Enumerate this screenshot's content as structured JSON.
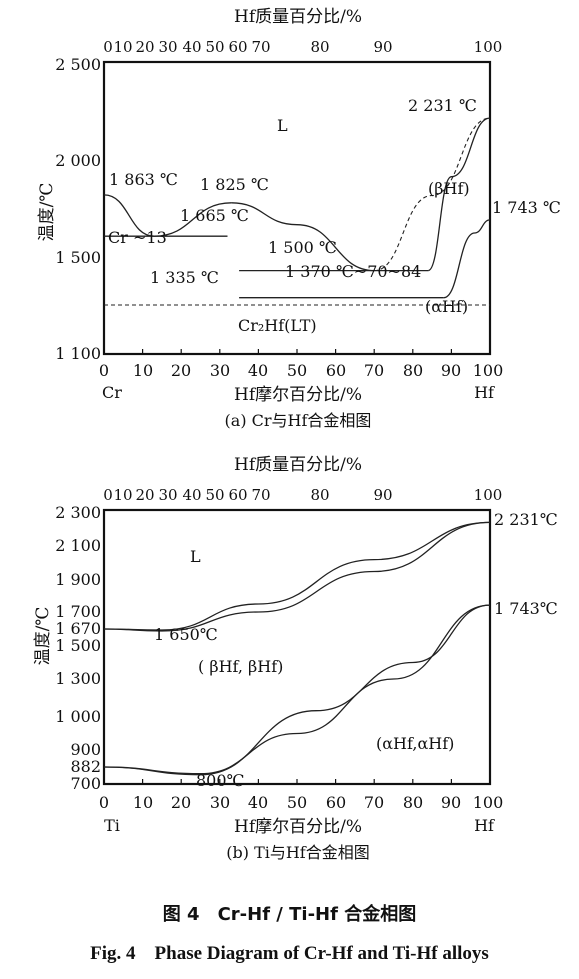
{
  "chart_data": [
    {
      "type": "line",
      "subtitle": "(a) Cr与Hf合金相图",
      "top_axis_label": "Hf质量百分比/%",
      "top_ticks": [
        "0",
        "10",
        "20",
        "30",
        "40",
        "50",
        "60",
        "70",
        "80",
        "90",
        "100"
      ],
      "xlabel": "Hf摩尔百分比/%",
      "ylabel": "温度/℃",
      "xlim": [
        0,
        100
      ],
      "ylim": [
        1100,
        2500
      ],
      "x_ticks": [
        "0",
        "10",
        "20",
        "30",
        "40",
        "50",
        "60",
        "70",
        "80",
        "90",
        "100"
      ],
      "y_ticks": [
        "1 100",
        "1 500",
        "2 000",
        "2 500"
      ],
      "x_end_labels": {
        "left": "Cr",
        "right": "Hf"
      },
      "annotations": [
        "L",
        "2 231 ℃",
        "1 863 ℃",
        "1 825 ℃",
        "1 665 ℃",
        "(βHf)",
        "1 743 ℃",
        "Cr ~13",
        "1 500 ℃",
        "1 335 ℃",
        "1 370 ℃~70~84",
        "(αHf)",
        "Cr₂Hf(LT)"
      ],
      "series": [
        {
          "style": "solid",
          "x": [
            0,
            13,
            33
          ],
          "y": [
            1863,
            1665,
            1825
          ]
        },
        {
          "style": "solid",
          "x": [
            33,
            50,
            70
          ],
          "y": [
            1825,
            1720,
            1500
          ]
        },
        {
          "style": "dashed",
          "x": [
            70,
            85,
            100
          ],
          "y": [
            1500,
            1860,
            2231
          ]
        },
        {
          "style": "solid",
          "x": [
            84,
            90,
            100
          ],
          "y": [
            1500,
            1950,
            2231
          ]
        },
        {
          "style": "solid",
          "x": [
            88,
            96,
            100
          ],
          "y": [
            1370,
            1680,
            1743
          ]
        },
        {
          "style": "solid",
          "x": [
            0,
            32
          ],
          "y": [
            1665,
            1665
          ]
        },
        {
          "style": "solid",
          "x": [
            35,
            84
          ],
          "y": [
            1500,
            1500
          ]
        },
        {
          "style": "solid",
          "x": [
            35,
            88
          ],
          "y": [
            1370,
            1370
          ]
        },
        {
          "style": "dashed",
          "x": [
            0,
            100
          ],
          "y": [
            1335,
            1335
          ]
        }
      ]
    },
    {
      "type": "line",
      "subtitle": "(b) Ti与Hf合金相图",
      "top_axis_label": "Hf质量百分比/%",
      "top_ticks": [
        "0",
        "10",
        "20",
        "30",
        "40",
        "50",
        "60",
        "70",
        "80",
        "90",
        "100"
      ],
      "xlabel": "Hf摩尔百分比/%",
      "ylabel": "温度/℃",
      "xlim": [
        0,
        100
      ],
      "ylim": [
        700,
        2300
      ],
      "x_ticks": [
        "0",
        "10",
        "20",
        "30",
        "40",
        "50",
        "60",
        "70",
        "80",
        "90",
        "100"
      ],
      "y_ticks": [
        "700",
        "882",
        "900",
        "1 000",
        "1 300",
        "1 500",
        "1 670",
        "1 700",
        "1 900",
        "2 100",
        "2 300"
      ],
      "x_end_labels": {
        "left": "Ti",
        "right": "Hf"
      },
      "annotations": [
        "L",
        "2 231℃",
        "1 650℃",
        "1 743℃",
        "( βHf, βHf)",
        "(αHf,αHf)",
        "800℃"
      ],
      "series": [
        {
          "style": "solid",
          "x": [
            0,
            15,
            40,
            70,
            100
          ],
          "y": [
            1670,
            1650,
            1700,
            1950,
            2231
          ]
        },
        {
          "style": "solid",
          "x": [
            0,
            15,
            40,
            70,
            100
          ],
          "y": [
            1670,
            1660,
            1750,
            2020,
            2231
          ]
        },
        {
          "style": "solid",
          "x": [
            0,
            25,
            55,
            80,
            100
          ],
          "y": [
            882,
            800,
            1050,
            1400,
            1743
          ]
        },
        {
          "style": "solid",
          "x": [
            0,
            25,
            50,
            75,
            100
          ],
          "y": [
            882,
            810,
            950,
            1300,
            1743
          ]
        }
      ]
    }
  ],
  "caption": {
    "cn": "图 4　Cr-Hf / Ti-Hf 合金相图",
    "en": "Fig. 4　Phase Diagram of Cr-Hf and Ti-Hf alloys"
  }
}
